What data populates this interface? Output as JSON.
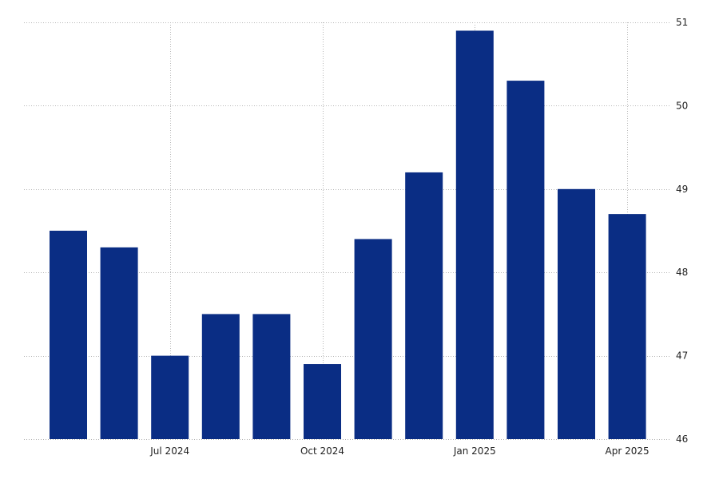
{
  "chart_data": {
    "type": "bar",
    "categories": [
      "May 2024",
      "Jun 2024",
      "Jul 2024",
      "Aug 2024",
      "Sep 2024",
      "Oct 2024",
      "Nov 2024",
      "Dec 2024",
      "Jan 2025",
      "Feb 2025",
      "Mar 2025",
      "Apr 2025"
    ],
    "values": [
      48.5,
      48.3,
      47.0,
      47.5,
      47.5,
      46.9,
      48.4,
      49.2,
      50.9,
      50.3,
      49.0,
      48.7
    ],
    "x_tick_labels": [
      {
        "label": "Jul 2024",
        "category": "Jul 2024"
      },
      {
        "label": "Oct 2024",
        "category": "Oct 2024"
      },
      {
        "label": "Jan 2025",
        "category": "Jan 2025"
      },
      {
        "label": "Apr 2025",
        "category": "Apr 2025"
      }
    ],
    "y_ticks": [
      46,
      47,
      48,
      49,
      50,
      51
    ],
    "ylim": [
      46,
      51
    ],
    "y_axis_side": "right",
    "grid": true,
    "title": "",
    "xlabel": "",
    "ylabel": "",
    "bar_color": "#0a2d84"
  }
}
